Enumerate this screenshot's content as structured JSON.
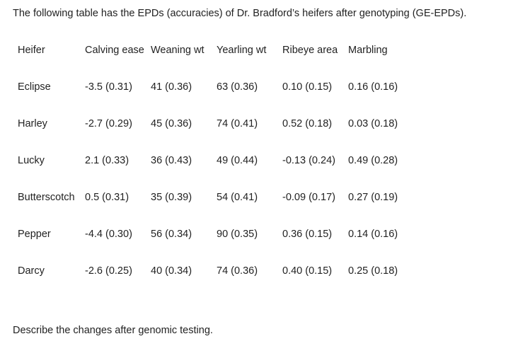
{
  "intro_text": "The following table has the EPDs (accuracies) of Dr. Bradford’s heifers after genotyping (GE-EPDs).",
  "table": {
    "headers": [
      "Heifer",
      "Calving ease",
      "Weaning wt",
      "Yearling wt",
      "Ribeye area",
      "Marbling"
    ],
    "rows": [
      [
        "Eclipse",
        "-3.5 (0.31)",
        "41 (0.36)",
        "63 (0.36)",
        "0.10 (0.15)",
        "0.16 (0.16)"
      ],
      [
        "Harley",
        "-2.7 (0.29)",
        "45 (0.36)",
        "74 (0.41)",
        "0.52 (0.18)",
        "0.03 (0.18)"
      ],
      [
        "Lucky",
        "2.1 (0.33)",
        "36 (0.43)",
        "49 (0.44)",
        "-0.13 (0.24)",
        "0.49 (0.28)"
      ],
      [
        "Butterscotch",
        "0.5 (0.31)",
        "35 (0.39)",
        "54 (0.41)",
        "-0.09 (0.17)",
        "0.27 (0.19)"
      ],
      [
        "Pepper",
        "-4.4 (0.30)",
        "56 (0.34)",
        "90 (0.35)",
        "0.36 (0.15)",
        "0.14 (0.16)"
      ],
      [
        "Darcy",
        "-2.6 (0.25)",
        "40 (0.34)",
        "74 (0.36)",
        "0.40 (0.15)",
        "0.25 (0.18)"
      ]
    ]
  },
  "prompt_text": "Describe the changes after genomic testing."
}
